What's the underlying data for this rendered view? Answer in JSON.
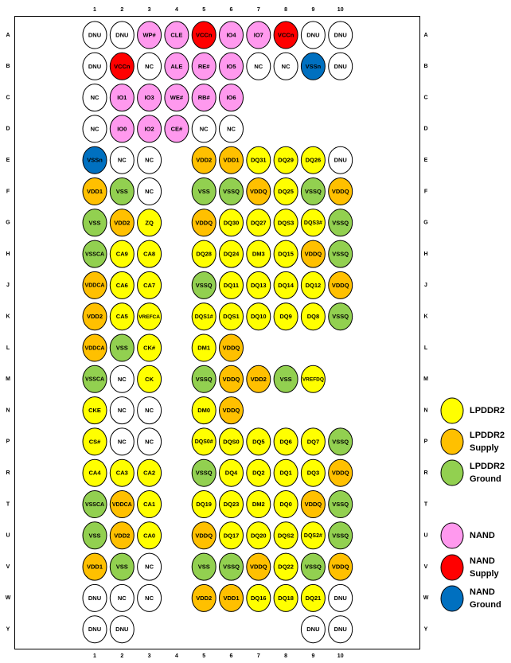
{
  "columns": [
    1,
    2,
    3,
    4,
    5,
    6,
    7,
    8,
    9,
    10
  ],
  "rows": [
    {
      "label": "A",
      "balls": [
        {
          "label": "DNU",
          "color": "#ffffff"
        },
        {
          "label": "DNU",
          "color": "#ffffff"
        },
        {
          "label": "WP#",
          "color": "#ff99ee"
        },
        {
          "label": "CLE",
          "color": "#ff99ee"
        },
        {
          "label": "VCCn",
          "color": "#ff0000"
        },
        {
          "label": "IO4",
          "color": "#ff99ee"
        },
        {
          "label": "IO7",
          "color": "#ff99ee"
        },
        {
          "label": "VCCn",
          "color": "#ff0000"
        },
        {
          "label": "DNU",
          "color": "#ffffff"
        },
        {
          "label": "DNU",
          "color": "#ffffff"
        }
      ]
    },
    {
      "label": "B",
      "balls": [
        {
          "label": "DNU",
          "color": "#ffffff"
        },
        {
          "label": "VCCn",
          "color": "#ff0000"
        },
        {
          "label": "NC",
          "color": "#ffffff"
        },
        {
          "label": "ALE",
          "color": "#ff99ee"
        },
        {
          "label": "RE#",
          "color": "#ff99ee"
        },
        {
          "label": "IO5",
          "color": "#ff99ee"
        },
        {
          "label": "NC",
          "color": "#ffffff"
        },
        {
          "label": "NC",
          "color": "#ffffff"
        },
        {
          "label": "VSSn",
          "color": "#0070c0"
        },
        {
          "label": "DNU",
          "color": "#ffffff"
        }
      ]
    },
    {
      "label": "C",
      "balls": [
        {
          "label": "NC",
          "color": "#ffffff"
        },
        {
          "label": "IO1",
          "color": "#ff99ee"
        },
        {
          "label": "IO3",
          "color": "#ff99ee"
        },
        {
          "label": "WE#",
          "color": "#ff99ee"
        },
        {
          "label": "RB#",
          "color": "#ff99ee"
        },
        {
          "label": "IO6",
          "color": "#ff99ee"
        },
        null,
        null,
        null,
        null
      ]
    },
    {
      "label": "D",
      "balls": [
        {
          "label": "NC",
          "color": "#ffffff"
        },
        {
          "label": "IO0",
          "color": "#ff99ee"
        },
        {
          "label": "IO2",
          "color": "#ff99ee"
        },
        {
          "label": "CE#",
          "color": "#ff99ee"
        },
        {
          "label": "NC",
          "color": "#ffffff"
        },
        {
          "label": "NC",
          "color": "#ffffff"
        },
        null,
        null,
        null,
        null
      ]
    },
    {
      "label": "E",
      "balls": [
        {
          "label": "VSSn",
          "color": "#0070c0"
        },
        {
          "label": "NC",
          "color": "#ffffff"
        },
        {
          "label": "NC",
          "color": "#ffffff"
        },
        null,
        {
          "label": "VDD2",
          "color": "#ffc000"
        },
        {
          "label": "VDD1",
          "color": "#ffc000"
        },
        {
          "label": "DQ31",
          "color": "#ffff00"
        },
        {
          "label": "DQ29",
          "color": "#ffff00"
        },
        {
          "label": "DQ26",
          "color": "#ffff00"
        },
        {
          "label": "DNU",
          "color": "#ffffff"
        }
      ]
    },
    {
      "label": "F",
      "balls": [
        {
          "label": "VDD1",
          "color": "#ffc000"
        },
        {
          "label": "VSS",
          "color": "#92d050"
        },
        {
          "label": "NC",
          "color": "#ffffff"
        },
        null,
        {
          "label": "VSS",
          "color": "#92d050"
        },
        {
          "label": "VSSQ",
          "color": "#92d050"
        },
        {
          "label": "VDDQ",
          "color": "#ffc000"
        },
        {
          "label": "DQ25",
          "color": "#ffff00"
        },
        {
          "label": "VSSQ",
          "color": "#92d050"
        },
        {
          "label": "VDDQ",
          "color": "#ffc000"
        }
      ]
    },
    {
      "label": "G",
      "balls": [
        {
          "label": "VSS",
          "color": "#92d050"
        },
        {
          "label": "VDD2",
          "color": "#ffc000"
        },
        {
          "label": "ZQ",
          "color": "#ffff00"
        },
        null,
        {
          "label": "VDDQ",
          "color": "#ffc000"
        },
        {
          "label": "DQ30",
          "color": "#ffff00"
        },
        {
          "label": "DQ27",
          "color": "#ffff00"
        },
        {
          "label": "DQS3",
          "color": "#ffff00"
        },
        {
          "label": "DQS3#",
          "color": "#ffff00"
        },
        {
          "label": "VSSQ",
          "color": "#92d050"
        }
      ]
    },
    {
      "label": "H",
      "balls": [
        {
          "label": "VSSCA",
          "color": "#92d050"
        },
        {
          "label": "CA9",
          "color": "#ffff00"
        },
        {
          "label": "CA8",
          "color": "#ffff00"
        },
        null,
        {
          "label": "DQ28",
          "color": "#ffff00"
        },
        {
          "label": "DQ24",
          "color": "#ffff00"
        },
        {
          "label": "DM3",
          "color": "#ffff00"
        },
        {
          "label": "DQ15",
          "color": "#ffff00"
        },
        {
          "label": "VDDQ",
          "color": "#ffc000"
        },
        {
          "label": "VSSQ",
          "color": "#92d050"
        }
      ]
    },
    {
      "label": "J",
      "balls": [
        {
          "label": "VDDCA",
          "color": "#ffc000"
        },
        {
          "label": "CA6",
          "color": "#ffff00"
        },
        {
          "label": "CA7",
          "color": "#ffff00"
        },
        null,
        {
          "label": "VSSQ",
          "color": "#92d050"
        },
        {
          "label": "DQ11",
          "color": "#ffff00"
        },
        {
          "label": "DQ13",
          "color": "#ffff00"
        },
        {
          "label": "DQ14",
          "color": "#ffff00"
        },
        {
          "label": "DQ12",
          "color": "#ffff00"
        },
        {
          "label": "VDDQ",
          "color": "#ffc000"
        }
      ]
    },
    {
      "label": "K",
      "balls": [
        {
          "label": "VDD2",
          "color": "#ffc000"
        },
        {
          "label": "CA5",
          "color": "#ffff00"
        },
        {
          "label": "VREFCA",
          "color": "#ffff00"
        },
        null,
        {
          "label": "DQS1#",
          "color": "#ffff00"
        },
        {
          "label": "DQS1",
          "color": "#ffff00"
        },
        {
          "label": "DQ10",
          "color": "#ffff00"
        },
        {
          "label": "DQ9",
          "color": "#ffff00"
        },
        {
          "label": "DQ8",
          "color": "#ffff00"
        },
        {
          "label": "VSSQ",
          "color": "#92d050"
        }
      ]
    },
    {
      "label": "L",
      "balls": [
        {
          "label": "VDDCA",
          "color": "#ffc000"
        },
        {
          "label": "VSS",
          "color": "#92d050"
        },
        {
          "label": "CK#",
          "color": "#ffff00"
        },
        null,
        {
          "label": "DM1",
          "color": "#ffff00"
        },
        {
          "label": "VDDQ",
          "color": "#ffc000"
        },
        null,
        null,
        null,
        null
      ]
    },
    {
      "label": "M",
      "balls": [
        {
          "label": "VSSCA",
          "color": "#92d050"
        },
        {
          "label": "NC",
          "color": "#ffffff"
        },
        {
          "label": "CK",
          "color": "#ffff00"
        },
        null,
        {
          "label": "VSSQ",
          "color": "#92d050"
        },
        {
          "label": "VDDQ",
          "color": "#ffc000"
        },
        {
          "label": "VDD2",
          "color": "#ffc000"
        },
        {
          "label": "VSS",
          "color": "#92d050"
        },
        {
          "label": "VREFDQ",
          "color": "#ffff00"
        },
        null
      ]
    },
    {
      "label": "N",
      "balls": [
        {
          "label": "CKE",
          "color": "#ffff00"
        },
        {
          "label": "NC",
          "color": "#ffffff"
        },
        {
          "label": "NC",
          "color": "#ffffff"
        },
        null,
        {
          "label": "DM0",
          "color": "#ffff00"
        },
        {
          "label": "VDDQ",
          "color": "#ffc000"
        },
        null,
        null,
        null,
        null
      ]
    },
    {
      "label": "P",
      "balls": [
        {
          "label": "CS#",
          "color": "#ffff00"
        },
        {
          "label": "NC",
          "color": "#ffffff"
        },
        {
          "label": "NC",
          "color": "#ffffff"
        },
        null,
        {
          "label": "DQS0#",
          "color": "#ffff00"
        },
        {
          "label": "DQS0",
          "color": "#ffff00"
        },
        {
          "label": "DQ5",
          "color": "#ffff00"
        },
        {
          "label": "DQ6",
          "color": "#ffff00"
        },
        {
          "label": "DQ7",
          "color": "#ffff00"
        },
        {
          "label": "VSSQ",
          "color": "#92d050"
        }
      ]
    },
    {
      "label": "R",
      "balls": [
        {
          "label": "CA4",
          "color": "#ffff00"
        },
        {
          "label": "CA3",
          "color": "#ffff00"
        },
        {
          "label": "CA2",
          "color": "#ffff00"
        },
        null,
        {
          "label": "VSSQ",
          "color": "#92d050"
        },
        {
          "label": "DQ4",
          "color": "#ffff00"
        },
        {
          "label": "DQ2",
          "color": "#ffff00"
        },
        {
          "label": "DQ1",
          "color": "#ffff00"
        },
        {
          "label": "DQ3",
          "color": "#ffff00"
        },
        {
          "label": "VDDQ",
          "color": "#ffc000"
        }
      ]
    },
    {
      "label": "T",
      "balls": [
        {
          "label": "VSSCA",
          "color": "#92d050"
        },
        {
          "label": "VDDCA",
          "color": "#ffc000"
        },
        {
          "label": "CA1",
          "color": "#ffff00"
        },
        null,
        {
          "label": "DQ19",
          "color": "#ffff00"
        },
        {
          "label": "DQ23",
          "color": "#ffff00"
        },
        {
          "label": "DM2",
          "color": "#ffff00"
        },
        {
          "label": "DQ0",
          "color": "#ffff00"
        },
        {
          "label": "VDDQ",
          "color": "#ffc000"
        },
        {
          "label": "VSSQ",
          "color": "#92d050"
        }
      ]
    },
    {
      "label": "U",
      "balls": [
        {
          "label": "VSS",
          "color": "#92d050"
        },
        {
          "label": "VDD2",
          "color": "#ffc000"
        },
        {
          "label": "CA0",
          "color": "#ffff00"
        },
        null,
        {
          "label": "VDDQ",
          "color": "#ffc000"
        },
        {
          "label": "DQ17",
          "color": "#ffff00"
        },
        {
          "label": "DQ20",
          "color": "#ffff00"
        },
        {
          "label": "DQS2",
          "color": "#ffff00"
        },
        {
          "label": "DQS2#",
          "color": "#ffff00"
        },
        {
          "label": "VSSQ",
          "color": "#92d050"
        }
      ]
    },
    {
      "label": "V",
      "balls": [
        {
          "label": "VDD1",
          "color": "#ffc000"
        },
        {
          "label": "VSS",
          "color": "#92d050"
        },
        {
          "label": "NC",
          "color": "#ffffff"
        },
        null,
        {
          "label": "VSS",
          "color": "#92d050"
        },
        {
          "label": "VSSQ",
          "color": "#92d050"
        },
        {
          "label": "VDDQ",
          "color": "#ffc000"
        },
        {
          "label": "DQ22",
          "color": "#ffff00"
        },
        {
          "label": "VSSQ",
          "color": "#92d050"
        },
        {
          "label": "VDDQ",
          "color": "#ffc000"
        }
      ]
    },
    {
      "label": "W",
      "balls": [
        {
          "label": "DNU",
          "color": "#ffffff"
        },
        {
          "label": "NC",
          "color": "#ffffff"
        },
        {
          "label": "NC",
          "color": "#ffffff"
        },
        null,
        {
          "label": "VDD2",
          "color": "#ffc000"
        },
        {
          "label": "VDD1",
          "color": "#ffc000"
        },
        {
          "label": "DQ16",
          "color": "#ffff00"
        },
        {
          "label": "DQ18",
          "color": "#ffff00"
        },
        {
          "label": "DQ21",
          "color": "#ffff00"
        },
        {
          "label": "DNU",
          "color": "#ffffff"
        }
      ]
    },
    {
      "label": "Y",
      "balls": [
        {
          "label": "DNU",
          "color": "#ffffff"
        },
        {
          "label": "DNU",
          "color": "#ffffff"
        },
        null,
        null,
        null,
        null,
        null,
        null,
        {
          "label": "DNU",
          "color": "#ffffff"
        },
        {
          "label": "DNU",
          "color": "#ffffff"
        }
      ]
    }
  ],
  "legend": [
    {
      "label": "LPDDR2",
      "color": "#ffff00"
    },
    {
      "label": "LPDDR2 Supply",
      "color": "#ffc000"
    },
    {
      "label": "LPDDR2 Ground",
      "color": "#92d050"
    },
    {
      "label": "NAND",
      "color": "#ff99ee"
    },
    {
      "label": "NAND Supply",
      "color": "#ff0000"
    },
    {
      "label": "NAND Ground",
      "color": "#0070c0"
    }
  ]
}
